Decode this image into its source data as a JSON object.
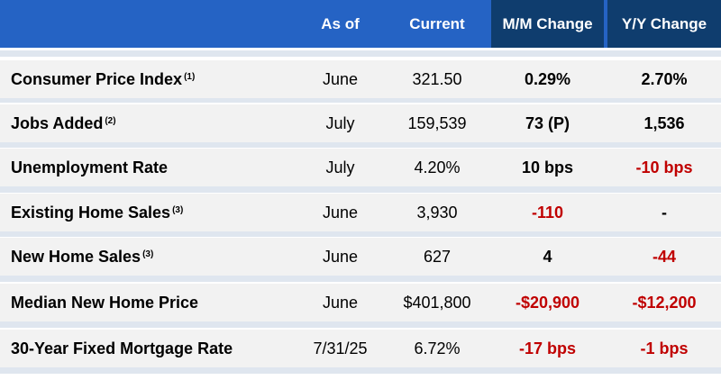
{
  "header": {
    "as_of": "As of",
    "current": "Current",
    "mm_change": "M/M Change",
    "yy_change": "Y/Y Change"
  },
  "colors": {
    "header_blue": "#2563c4",
    "header_dark": "#0f3d6e",
    "negative": "#c00000",
    "row_bg": "#f2f2f2",
    "separator": "#dfe6ef"
  },
  "rows": [
    {
      "label": "Consumer Price Index",
      "note": "(1)",
      "as_of": "June",
      "current": "321.50",
      "mm": "0.29%",
      "yy": "2.70%",
      "mm_neg": false,
      "yy_neg": false
    },
    {
      "label": "Jobs Added",
      "note": "(2)",
      "as_of": "July",
      "current": "159,539",
      "mm": "73 (P)",
      "yy": "1,536",
      "mm_neg": false,
      "yy_neg": false
    },
    {
      "label": "Unemployment Rate",
      "note": "",
      "as_of": "July",
      "current": "4.20%",
      "mm": "10 bps",
      "yy": "-10 bps",
      "mm_neg": false,
      "yy_neg": true
    },
    {
      "label": "Existing Home Sales",
      "note": "(3)",
      "as_of": "June",
      "current": "3,930",
      "mm": "-110",
      "yy": "-",
      "mm_neg": true,
      "yy_neg": false
    },
    {
      "label": "New Home Sales",
      "note": "(3)",
      "as_of": "June",
      "current": "627",
      "mm": "4",
      "yy": "-44",
      "mm_neg": false,
      "yy_neg": true
    },
    {
      "label": "Median New Home Price",
      "note": "",
      "as_of": "June",
      "current": "$401,800",
      "mm": "-$20,900",
      "yy": "-$12,200",
      "mm_neg": true,
      "yy_neg": true
    },
    {
      "label": "30-Year Fixed Mortgage Rate",
      "note": "",
      "as_of": "7/31/25",
      "current": "6.72%",
      "mm": "-17 bps",
      "yy": "-1 bps",
      "mm_neg": true,
      "yy_neg": true
    }
  ]
}
